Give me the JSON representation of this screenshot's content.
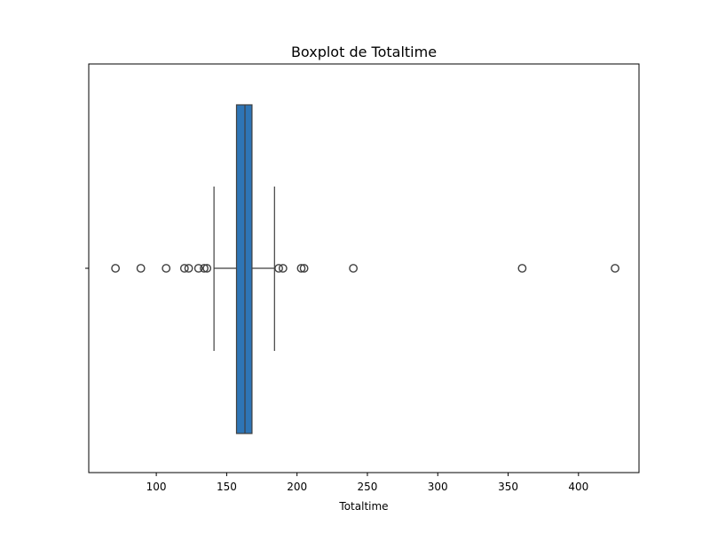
{
  "chart_data": {
    "type": "box",
    "title": "Boxplot de Totaltime",
    "xlabel": "Totaltime",
    "ylabel": "",
    "xlim": [
      52,
      443
    ],
    "xticks": [
      100,
      150,
      200,
      250,
      300,
      350,
      400
    ],
    "xtick_labels": [
      "100",
      "150",
      "200",
      "250",
      "300",
      "350",
      "400"
    ],
    "orientation": "horizontal",
    "grid": false,
    "box": {
      "q1": 157,
      "median": 163,
      "q3": 168,
      "whisker_low": 141,
      "whisker_high": 184
    },
    "outliers": [
      71,
      89,
      107,
      120,
      123,
      130,
      134,
      136,
      187,
      190,
      203,
      205,
      240,
      360,
      426
    ],
    "colors": {
      "box_fill": "#2e75b6",
      "box_edge": "#3f3f3f",
      "whisker": "#3f3f3f",
      "outlier_edge": "#3f3f3f"
    }
  }
}
